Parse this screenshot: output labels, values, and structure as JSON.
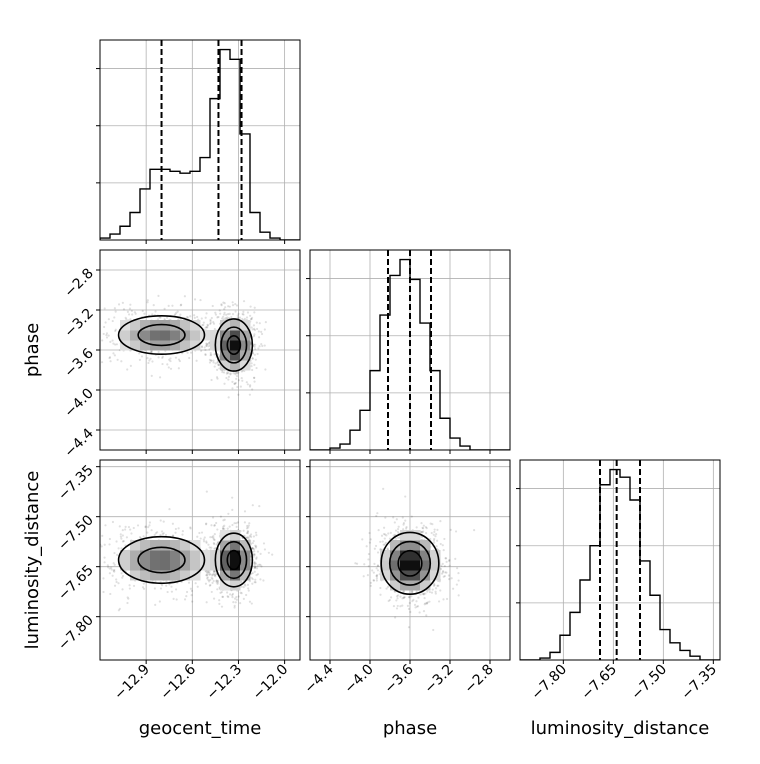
{
  "chart_data": {
    "type": "corner",
    "parameters": [
      {
        "name": "geocent_time",
        "label": "geocent_time",
        "range": [
          -13.2,
          -11.9
        ],
        "ticks": [
          -12.9,
          -12.6,
          -12.3,
          -12.0
        ],
        "tick_labels": [
          "−12.9",
          "−12.6",
          "−12.3",
          "−12.0"
        ],
        "quantiles": [
          -12.8,
          -12.43,
          -12.28
        ]
      },
      {
        "name": "phase",
        "label": "phase",
        "range": [
          -4.6,
          -2.6
        ],
        "ticks": [
          -4.4,
          -4.0,
          -3.6,
          -3.2,
          -2.8
        ],
        "tick_labels": [
          "−4.4",
          "−4.0",
          "−3.6",
          "−3.2",
          "−2.8"
        ],
        "quantiles": [
          -3.82,
          -3.6,
          -3.39
        ]
      },
      {
        "name": "luminosity_distance",
        "label": "luminosity_distance",
        "range": [
          -7.93,
          -7.33
        ],
        "ticks": [
          -7.8,
          -7.65,
          -7.5,
          -7.35
        ],
        "tick_labels": [
          "−7.80",
          "−7.65",
          "−7.50",
          "−7.35"
        ],
        "quantiles": [
          -7.69,
          -7.64,
          -7.57
        ]
      }
    ],
    "histograms": {
      "geocent_time": {
        "bin_edges": [
          -13.2,
          -13.135,
          -13.07,
          -13.005,
          -12.94,
          -12.875,
          -12.81,
          -12.745,
          -12.68,
          -12.615,
          -12.55,
          -12.485,
          -12.42,
          -12.355,
          -12.29,
          -12.225,
          -12.16,
          -12.095,
          -12.03,
          -11.965,
          -11.9
        ],
        "counts": [
          0.01,
          0.03,
          0.07,
          0.14,
          0.26,
          0.36,
          0.36,
          0.35,
          0.34,
          0.35,
          0.42,
          0.72,
          0.97,
          0.92,
          0.54,
          0.14,
          0.04,
          0.01,
          0.0,
          0.0
        ]
      },
      "phase": {
        "bin_edges": [
          -4.6,
          -4.5,
          -4.4,
          -4.3,
          -4.2,
          -4.1,
          -4.0,
          -3.9,
          -3.8,
          -3.7,
          -3.6,
          -3.5,
          -3.4,
          -3.3,
          -3.2,
          -3.1,
          -3.0,
          -2.9,
          -2.8,
          -2.7,
          -2.6
        ],
        "counts": [
          0.0,
          0.0,
          0.01,
          0.03,
          0.1,
          0.2,
          0.4,
          0.68,
          0.88,
          0.96,
          0.86,
          0.64,
          0.4,
          0.16,
          0.06,
          0.02,
          0.0,
          0.0,
          0.0,
          0.0
        ]
      },
      "luminosity_distance": {
        "bin_edges": [
          -7.93,
          -7.9,
          -7.87,
          -7.84,
          -7.81,
          -7.78,
          -7.75,
          -7.72,
          -7.69,
          -7.66,
          -7.63,
          -7.6,
          -7.57,
          -7.54,
          -7.51,
          -7.48,
          -7.45,
          -7.42,
          -7.39,
          -7.36,
          -7.33
        ],
        "counts": [
          0.0,
          0.0,
          0.01,
          0.04,
          0.13,
          0.25,
          0.42,
          0.6,
          0.92,
          1.0,
          0.96,
          0.84,
          0.52,
          0.34,
          0.16,
          0.09,
          0.05,
          0.02,
          0.0,
          0.0
        ]
      }
    },
    "density_2d": [
      {
        "x": "geocent_time",
        "y": "phase",
        "modes": [
          {
            "x": -12.8,
            "y": -3.45,
            "sx": 0.16,
            "sy": 0.11,
            "w": 0.55
          },
          {
            "x": -12.33,
            "y": -3.55,
            "sx": 0.06,
            "sy": 0.13,
            "w": 0.9
          }
        ]
      },
      {
        "x": "geocent_time",
        "y": "luminosity_distance",
        "modes": [
          {
            "x": -12.8,
            "y": -7.63,
            "sx": 0.16,
            "sy": 0.04,
            "w": 0.55
          },
          {
            "x": -12.33,
            "y": -7.63,
            "sx": 0.06,
            "sy": 0.04,
            "w": 0.9
          }
        ]
      },
      {
        "x": "phase",
        "y": "luminosity_distance",
        "modes": [
          {
            "x": -3.6,
            "y": -7.64,
            "sx": 0.14,
            "sy": 0.045,
            "w": 1.0
          }
        ]
      }
    ],
    "grid": true,
    "legend": null
  }
}
